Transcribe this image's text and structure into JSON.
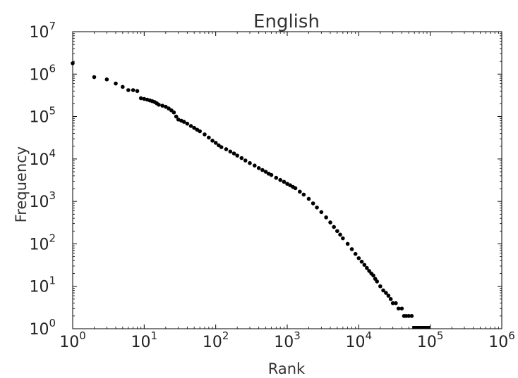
{
  "chart_data": {
    "type": "scatter",
    "title": "English",
    "xlabel": "Rank",
    "ylabel": "Frequency",
    "xscale": "log",
    "yscale": "log",
    "xlim": [
      1,
      1000000
    ],
    "ylim": [
      1,
      10000000
    ],
    "grid": false,
    "legend": "none",
    "marker_color": "#000000",
    "x_ticks": [
      {
        "base": "10",
        "exp": "0"
      },
      {
        "base": "10",
        "exp": "1"
      },
      {
        "base": "10",
        "exp": "2"
      },
      {
        "base": "10",
        "exp": "3"
      },
      {
        "base": "10",
        "exp": "4"
      },
      {
        "base": "10",
        "exp": "5"
      },
      {
        "base": "10",
        "exp": "6"
      }
    ],
    "y_ticks": [
      {
        "base": "10",
        "exp": "0"
      },
      {
        "base": "10",
        "exp": "1"
      },
      {
        "base": "10",
        "exp": "2"
      },
      {
        "base": "10",
        "exp": "3"
      },
      {
        "base": "10",
        "exp": "4"
      },
      {
        "base": "10",
        "exp": "5"
      },
      {
        "base": "10",
        "exp": "6"
      },
      {
        "base": "10",
        "exp": "7"
      }
    ],
    "points": [
      [
        1,
        1800000
      ],
      [
        2,
        850000
      ],
      [
        3,
        750000
      ],
      [
        4,
        600000
      ],
      [
        5,
        500000
      ],
      [
        6,
        420000
      ],
      [
        7,
        420000
      ],
      [
        8,
        400000
      ],
      [
        9,
        270000
      ],
      [
        10,
        260000
      ],
      [
        11,
        250000
      ],
      [
        12,
        240000
      ],
      [
        13,
        230000
      ],
      [
        14,
        220000
      ],
      [
        15,
        205000
      ],
      [
        16,
        190000
      ],
      [
        18,
        180000
      ],
      [
        20,
        170000
      ],
      [
        22,
        155000
      ],
      [
        24,
        140000
      ],
      [
        26,
        125000
      ],
      [
        28,
        100000
      ],
      [
        30,
        85000
      ],
      [
        33,
        80000
      ],
      [
        36,
        75000
      ],
      [
        40,
        68000
      ],
      [
        45,
        60000
      ],
      [
        50,
        54000
      ],
      [
        55,
        49000
      ],
      [
        60,
        45000
      ],
      [
        70,
        38000
      ],
      [
        80,
        32000
      ],
      [
        90,
        27000
      ],
      [
        100,
        24000
      ],
      [
        110,
        21000
      ],
      [
        120,
        19000
      ],
      [
        140,
        17000
      ],
      [
        160,
        15000
      ],
      [
        180,
        13500
      ],
      [
        200,
        12000
      ],
      [
        230,
        10500
      ],
      [
        260,
        9200
      ],
      [
        300,
        8000
      ],
      [
        350,
        7000
      ],
      [
        400,
        6100
      ],
      [
        450,
        5500
      ],
      [
        500,
        5000
      ],
      [
        550,
        4500
      ],
      [
        600,
        4200
      ],
      [
        700,
        3600
      ],
      [
        800,
        3200
      ],
      [
        900,
        2900
      ],
      [
        1000,
        2600
      ],
      [
        1100,
        2400
      ],
      [
        1200,
        2200
      ],
      [
        1300,
        2050
      ],
      [
        1500,
        1700
      ],
      [
        1700,
        1450
      ],
      [
        2000,
        1150
      ],
      [
        2300,
        900
      ],
      [
        2600,
        720
      ],
      [
        3000,
        560
      ],
      [
        3500,
        420
      ],
      [
        4000,
        320
      ],
      [
        4500,
        250
      ],
      [
        5000,
        200
      ],
      [
        5500,
        165
      ],
      [
        6000,
        135
      ],
      [
        7000,
        100
      ],
      [
        8000,
        75
      ],
      [
        9000,
        58
      ],
      [
        10000,
        46
      ],
      [
        11000,
        38
      ],
      [
        12000,
        32
      ],
      [
        13000,
        27
      ],
      [
        14000,
        23
      ],
      [
        15000,
        20
      ],
      [
        16000,
        18
      ],
      [
        17000,
        15
      ],
      [
        18000,
        13
      ],
      [
        20000,
        10
      ],
      [
        22000,
        8
      ],
      [
        24000,
        7
      ],
      [
        26000,
        6
      ],
      [
        28000,
        5
      ],
      [
        30000,
        4
      ],
      [
        33000,
        4
      ],
      [
        36000,
        3
      ],
      [
        40000,
        3
      ],
      [
        43000,
        2
      ],
      [
        46000,
        2
      ],
      [
        50000,
        2
      ],
      [
        55000,
        2
      ]
    ],
    "floor_segment": {
      "x_from": 56000,
      "x_to": 100000,
      "y": 1
    }
  }
}
